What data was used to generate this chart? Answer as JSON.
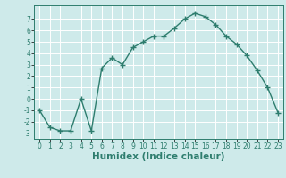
{
  "x": [
    0,
    1,
    2,
    3,
    4,
    5,
    6,
    7,
    8,
    9,
    10,
    11,
    12,
    13,
    14,
    15,
    16,
    17,
    18,
    19,
    20,
    21,
    22,
    23
  ],
  "y": [
    -1,
    -2.5,
    -2.8,
    -2.8,
    0,
    -2.8,
    2.7,
    3.6,
    3.0,
    4.5,
    5.0,
    5.5,
    5.5,
    6.2,
    7.0,
    7.5,
    7.2,
    6.5,
    5.5,
    4.8,
    3.8,
    2.5,
    1.0,
    -1.2
  ],
  "line_color": "#2e7d6e",
  "marker": "+",
  "marker_size": 4,
  "marker_color": "#2e7d6e",
  "bg_color": "#ceeaea",
  "grid_color": "#ffffff",
  "xlabel": "Humidex (Indice chaleur)",
  "xlim": [
    -0.5,
    23.5
  ],
  "ylim": [
    -3.5,
    8.2
  ],
  "yticks": [
    -3,
    -2,
    -1,
    0,
    1,
    2,
    3,
    4,
    5,
    6,
    7
  ],
  "xticks": [
    0,
    1,
    2,
    3,
    4,
    5,
    6,
    7,
    8,
    9,
    10,
    11,
    12,
    13,
    14,
    15,
    16,
    17,
    18,
    19,
    20,
    21,
    22,
    23
  ],
  "tick_label_fontsize": 5.5,
  "xlabel_fontsize": 7.5,
  "line_width": 1.0
}
